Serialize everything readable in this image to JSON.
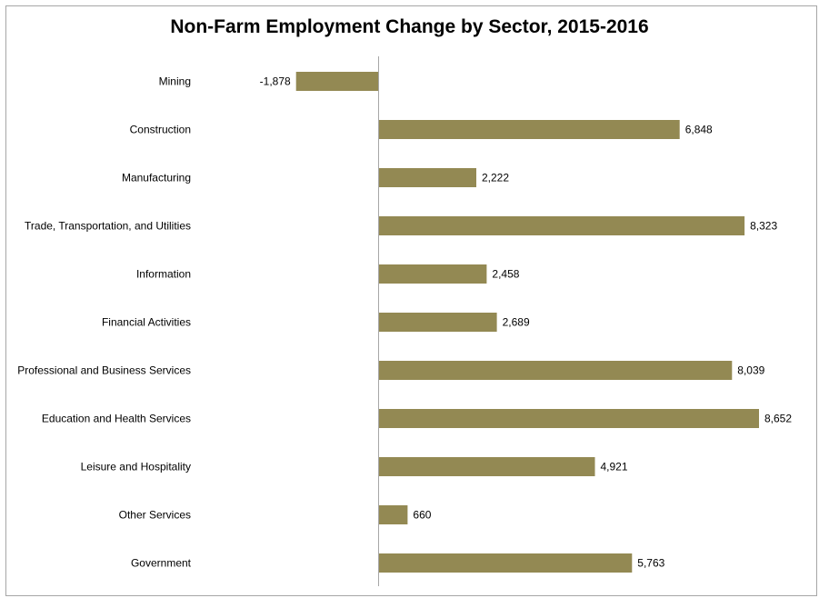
{
  "chart_data": {
    "type": "bar",
    "orientation": "horizontal",
    "title": "Non-Farm Employment Change by Sector, 2015-2016",
    "categories": [
      "Mining",
      "Construction",
      "Manufacturing",
      "Trade, Transportation, and Utilities",
      "Information",
      "Financial Activities",
      "Professional and Business Services",
      "Education and Health Services",
      "Leisure and Hospitality",
      "Other Services",
      "Government"
    ],
    "values": [
      -1878,
      6848,
      2222,
      8323,
      2458,
      2689,
      8039,
      8652,
      4921,
      660,
      5763
    ],
    "value_labels": [
      "-1,878",
      "6,848",
      "2,222",
      "8,323",
      "2,458",
      "2,689",
      "8,039",
      "8,652",
      "4,921",
      "660",
      "5,763"
    ],
    "xlim": [
      -1878,
      8652
    ],
    "bar_color": "#938953",
    "grid": false,
    "legend": "none"
  }
}
